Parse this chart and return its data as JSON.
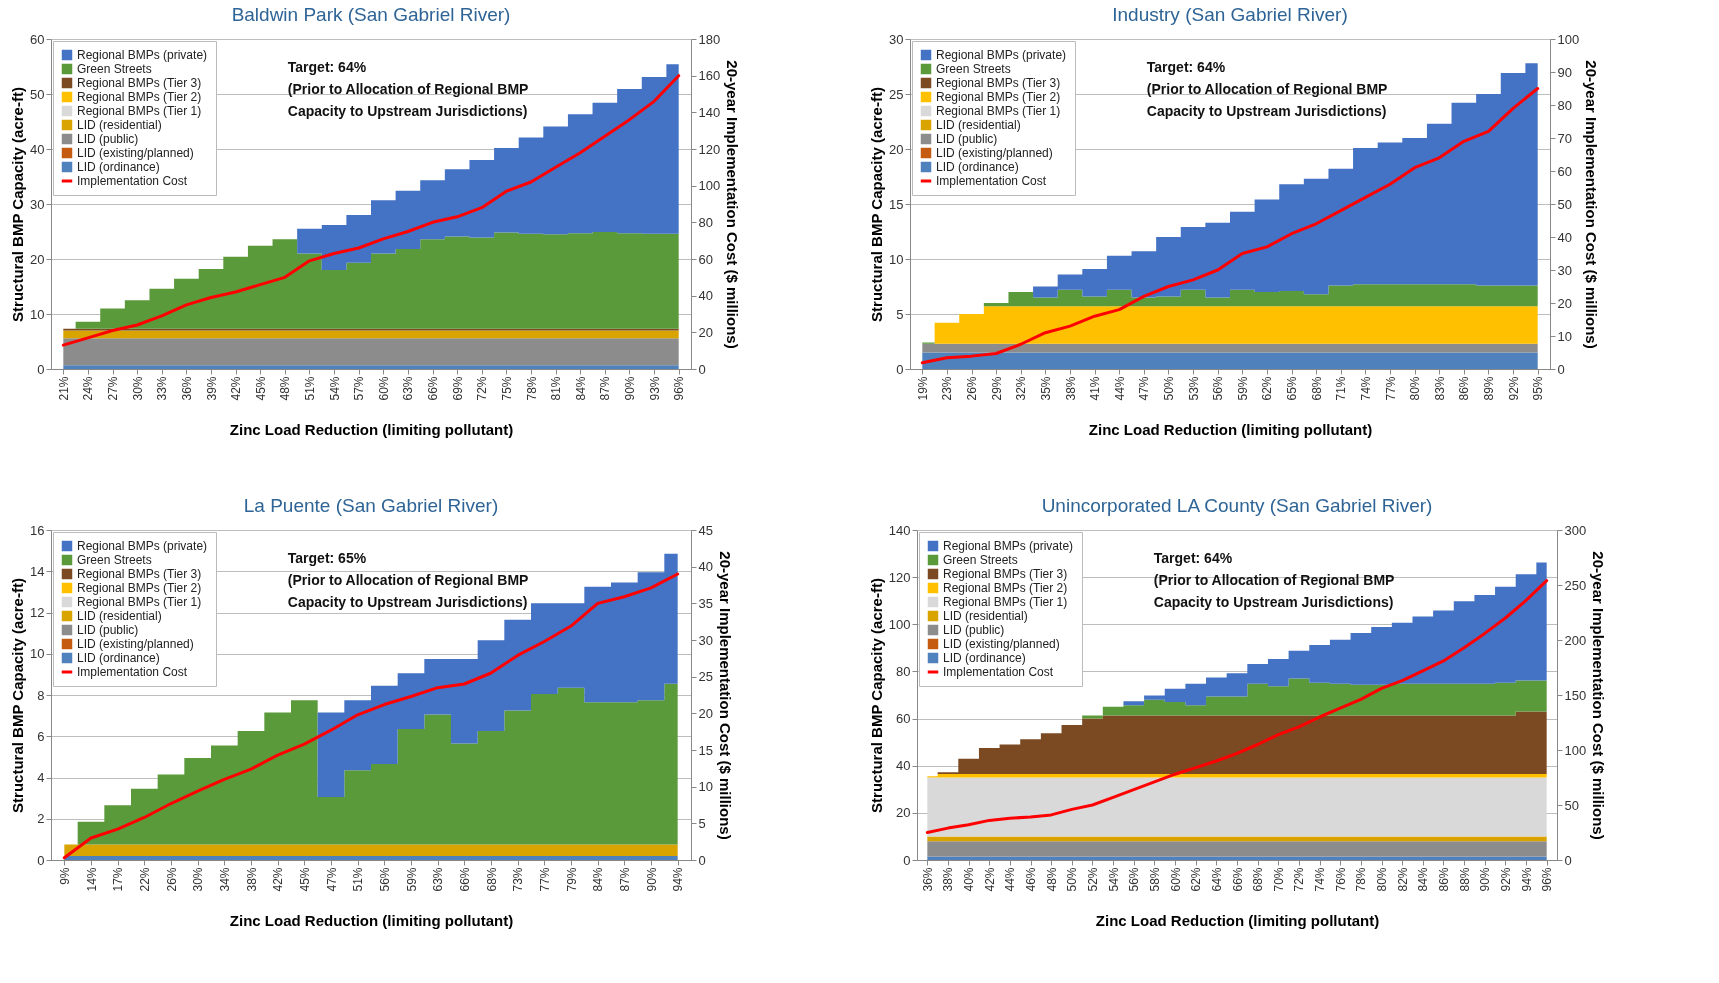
{
  "chart_data": [
    {
      "type": "area",
      "stacked": true,
      "title": "Baldwin Park (San Gabriel River)",
      "xlabel": "Zinc Load Reduction (limiting pollutant)",
      "ylabel": "Structural BMP Capacity (acre-ft)",
      "y2label": "20-year Implementation Cost ($ millions)",
      "legend": "top left",
      "grid": "y",
      "categories": [
        "21%",
        "24%",
        "27%",
        "30%",
        "33%",
        "36%",
        "39%",
        "42%",
        "45%",
        "48%",
        "51%",
        "54%",
        "57%",
        "60%",
        "63%",
        "66%",
        "69%",
        "72%",
        "75%",
        "78%",
        "81%",
        "84%",
        "87%",
        "90%",
        "93%",
        "96%"
      ],
      "ylim": [
        0,
        60
      ],
      "yticks": [
        0,
        10,
        20,
        30,
        40,
        50,
        60
      ],
      "y2lim": [
        0,
        180
      ],
      "y2ticks": [
        0,
        20,
        40,
        60,
        80,
        100,
        120,
        140,
        160,
        180
      ],
      "annotations": [
        "Target: 64%\n(Prior to Allocation of Regional BMP\nCapacity to Upstream Jurisdictions)"
      ],
      "series": [
        {
          "name": "LID (ordinance)",
          "color": "#4f81bd",
          "values": [
            0.7,
            0.7,
            0.7,
            0.7,
            0.7,
            0.7,
            0.7,
            0.7,
            0.7,
            0.7,
            0.7,
            0.7,
            0.7,
            0.7,
            0.7,
            0.7,
            0.7,
            0.7,
            0.7,
            0.7,
            0.7,
            0.7,
            0.7,
            0.7,
            0.7,
            0.7
          ]
        },
        {
          "name": "LID (existing/planned)",
          "color": "#c55a11",
          "values": [
            null,
            null,
            null,
            null,
            null,
            null,
            null,
            null,
            null,
            null,
            null,
            null,
            null,
            null,
            null,
            null,
            null,
            null,
            null,
            null,
            null,
            null,
            null,
            null,
            null,
            null
          ]
        },
        {
          "name": "LID (public)",
          "color": "#8c8c8c",
          "values": [
            4.9,
            4.9,
            4.9,
            4.9,
            4.9,
            4.9,
            4.9,
            4.9,
            4.9,
            4.9,
            4.9,
            4.9,
            4.9,
            4.9,
            4.9,
            4.9,
            4.9,
            4.9,
            4.9,
            4.9,
            4.9,
            4.9,
            4.9,
            4.9,
            4.9,
            4.9
          ]
        },
        {
          "name": "LID (residential)",
          "color": "#d9a300",
          "values": [
            1.4,
            1.4,
            1.4,
            1.4,
            1.4,
            1.4,
            1.4,
            1.4,
            1.4,
            1.4,
            1.4,
            1.4,
            1.4,
            1.4,
            1.4,
            1.4,
            1.4,
            1.4,
            1.4,
            1.4,
            1.4,
            1.4,
            1.4,
            1.4,
            1.4,
            1.4
          ]
        },
        {
          "name": "Regional BMPs (Tier 1)",
          "color": "#d9d9d9",
          "values": [
            null,
            null,
            null,
            null,
            null,
            null,
            null,
            null,
            null,
            null,
            null,
            null,
            null,
            null,
            null,
            null,
            null,
            null,
            null,
            null,
            null,
            null,
            null,
            null,
            null,
            null
          ]
        },
        {
          "name": "Regional BMPs (Tier 2)",
          "color": "#ffc000",
          "values": [
            null,
            null,
            null,
            null,
            null,
            null,
            null,
            null,
            null,
            null,
            null,
            null,
            null,
            null,
            null,
            null,
            null,
            null,
            null,
            null,
            null,
            null,
            null,
            null,
            null,
            null
          ]
        },
        {
          "name": "Regional BMPs (Tier 3)",
          "color": "#7b4a22",
          "values": [
            0.3,
            0.3,
            0.3,
            0.3,
            0.3,
            0.3,
            0.3,
            0.3,
            0.3,
            0.3,
            0.3,
            0.3,
            0.3,
            0.3,
            0.3,
            0.3,
            0.3,
            0.3,
            0.3,
            0.3,
            0.3,
            0.3,
            0.3,
            0.3,
            0.3,
            0.3
          ]
        },
        {
          "name": "Green Streets",
          "color": "#5b9a3b",
          "values": [
            0,
            1.3,
            3.7,
            5.2,
            7.3,
            9.1,
            10.9,
            13.1,
            15.1,
            16.3,
            13.7,
            10.7,
            12.0,
            13.7,
            14.5,
            16.3,
            16.8,
            16.6,
            17.5,
            17.3,
            17.2,
            17.4,
            17.6,
            17.4,
            17.3,
            17.3
          ]
        },
        {
          "name": "Regional BMPs (private)",
          "color": "#4472c4",
          "values": [
            0,
            0,
            0,
            0,
            0,
            0,
            0,
            0,
            0,
            0,
            4.5,
            8.2,
            8.7,
            9.7,
            10.6,
            10.7,
            12.2,
            14.1,
            15.4,
            17.5,
            19.6,
            21.6,
            23.5,
            26.2,
            28.5,
            30.8
          ]
        },
        {
          "name": "Implementation Cost",
          "type": "line",
          "axis": "y2",
          "color": "#ff0000",
          "values": [
            13,
            17,
            21,
            24,
            29,
            35,
            39,
            42,
            46,
            50,
            59,
            63,
            66,
            71,
            75,
            80,
            83,
            88,
            97,
            102,
            110,
            118,
            127,
            136,
            146,
            160
          ]
        }
      ]
    },
    {
      "type": "area",
      "stacked": true,
      "title": "Industry (San Gabriel River)",
      "xlabel": "Zinc Load Reduction (limiting pollutant)",
      "ylabel": "Structural BMP Capacity (acre-ft)",
      "y2label": "20-year Implementation Cost ($ millions)",
      "legend": "top left",
      "grid": "y",
      "categories": [
        "19%",
        "23%",
        "26%",
        "29%",
        "32%",
        "35%",
        "38%",
        "41%",
        "44%",
        "47%",
        "50%",
        "53%",
        "56%",
        "59%",
        "62%",
        "65%",
        "68%",
        "71%",
        "74%",
        "77%",
        "80%",
        "83%",
        "86%",
        "89%",
        "92%",
        "95%"
      ],
      "ylim": [
        0,
        30
      ],
      "yticks": [
        0,
        5,
        10,
        15,
        20,
        25,
        30
      ],
      "y2lim": [
        0,
        100
      ],
      "y2ticks": [
        0,
        10,
        20,
        30,
        40,
        50,
        60,
        70,
        80,
        90,
        100
      ],
      "annotations": [
        "Target: 64%\n(Prior to Allocation of Regional BMP\nCapacity to Upstream Jurisdictions)"
      ],
      "series": [
        {
          "name": "LID (ordinance)",
          "color": "#4f81bd",
          "values": [
            1.5,
            1.5,
            1.5,
            1.5,
            1.5,
            1.5,
            1.5,
            1.5,
            1.5,
            1.5,
            1.5,
            1.5,
            1.5,
            1.5,
            1.5,
            1.5,
            1.5,
            1.5,
            1.5,
            1.5,
            1.5,
            1.5,
            1.5,
            1.5,
            1.5,
            1.5
          ]
        },
        {
          "name": "LID (existing/planned)",
          "color": "#c55a11",
          "values": [
            null,
            null,
            null,
            null,
            null,
            null,
            null,
            null,
            null,
            null,
            null,
            null,
            null,
            null,
            null,
            null,
            null,
            null,
            null,
            null,
            null,
            null,
            null,
            null,
            null,
            null
          ]
        },
        {
          "name": "LID (public)",
          "color": "#8c8c8c",
          "values": [
            0.8,
            0.8,
            0.8,
            0.8,
            0.8,
            0.8,
            0.8,
            0.8,
            0.8,
            0.8,
            0.8,
            0.8,
            0.8,
            0.8,
            0.8,
            0.8,
            0.8,
            0.8,
            0.8,
            0.8,
            0.8,
            0.8,
            0.8,
            0.8,
            0.8,
            0.8
          ]
        },
        {
          "name": "LID (residential)",
          "color": "#d9a300",
          "values": [
            null,
            null,
            null,
            null,
            null,
            null,
            null,
            null,
            null,
            null,
            null,
            null,
            null,
            null,
            null,
            null,
            null,
            null,
            null,
            null,
            null,
            null,
            null,
            null,
            null,
            null
          ]
        },
        {
          "name": "Regional BMPs (Tier 1)",
          "color": "#d9d9d9",
          "values": [
            null,
            null,
            null,
            null,
            null,
            null,
            null,
            null,
            null,
            null,
            null,
            null,
            null,
            null,
            null,
            null,
            null,
            null,
            null,
            null,
            null,
            null,
            null,
            null,
            null,
            null
          ]
        },
        {
          "name": "Regional BMPs (Tier 2)",
          "color": "#ffc000",
          "values": [
            0,
            1.9,
            2.7,
            3.4,
            3.4,
            3.4,
            3.4,
            3.4,
            3.4,
            3.4,
            3.4,
            3.4,
            3.4,
            3.4,
            3.4,
            3.4,
            3.4,
            3.4,
            3.4,
            3.4,
            3.4,
            3.4,
            3.4,
            3.4,
            3.4,
            3.4
          ]
        },
        {
          "name": "Regional BMPs (Tier 3)",
          "color": "#7b4a22",
          "values": [
            null,
            null,
            null,
            null,
            null,
            null,
            null,
            null,
            null,
            null,
            null,
            null,
            null,
            null,
            null,
            null,
            null,
            null,
            null,
            null,
            null,
            null,
            null,
            null,
            null,
            null
          ]
        },
        {
          "name": "Green Streets",
          "color": "#5b9a3b",
          "values": [
            0.1,
            0,
            0,
            0.3,
            1.3,
            0.8,
            1.5,
            0.9,
            1.5,
            0.8,
            0.9,
            1.5,
            0.8,
            1.5,
            1.3,
            1.4,
            1.1,
            1.9,
            2.0,
            2.0,
            2.0,
            2.0,
            2.0,
            1.9,
            1.9,
            1.9
          ]
        },
        {
          "name": "Regional BMPs (private)",
          "color": "#4472c4",
          "values": [
            0,
            0,
            0,
            0,
            0,
            1.0,
            1.4,
            2.5,
            3.1,
            4.2,
            5.4,
            5.7,
            6.8,
            7.1,
            8.4,
            9.7,
            10.5,
            10.6,
            12.4,
            12.9,
            13.3,
            14.6,
            16.5,
            17.4,
            19.3,
            20.2
          ]
        },
        {
          "name": "Implementation Cost",
          "type": "line",
          "axis": "y2",
          "color": "#ff0000",
          "values": [
            1.9,
            3.4,
            3.9,
            4.7,
            7.5,
            11,
            13,
            16,
            18,
            22,
            25,
            27,
            30,
            35,
            37,
            41,
            44,
            48,
            52,
            56,
            61,
            64,
            69,
            72,
            79,
            85
          ]
        }
      ]
    },
    {
      "type": "area",
      "stacked": true,
      "title": "La Puente (San Gabriel River)",
      "xlabel": "Zinc Load Reduction (limiting pollutant)",
      "ylabel": "Structural BMP Capacity (acre-ft)",
      "y2label": "20-year Implementation Cost ($ millions)",
      "legend": "top left",
      "grid": "y",
      "categories": [
        "9%",
        "14%",
        "17%",
        "22%",
        "26%",
        "30%",
        "34%",
        "38%",
        "42%",
        "45%",
        "47%",
        "51%",
        "56%",
        "59%",
        "63%",
        "66%",
        "68%",
        "73%",
        "77%",
        "79%",
        "84%",
        "87%",
        "90%",
        "94%"
      ],
      "ylim": [
        0,
        16
      ],
      "yticks": [
        0,
        2,
        4,
        6,
        8,
        10,
        12,
        14,
        16
      ],
      "y2lim": [
        0,
        45
      ],
      "y2ticks": [
        0,
        5,
        10,
        15,
        20,
        25,
        30,
        35,
        40,
        45
      ],
      "annotations": [
        "Target: 65%\n(Prior to Allocation of Regional BMP\nCapacity to Upstream Jurisdictions)"
      ],
      "series": [
        {
          "name": "LID (ordinance)",
          "color": "#4f81bd",
          "values": [
            0.2,
            0.2,
            0.2,
            0.2,
            0.2,
            0.2,
            0.2,
            0.2,
            0.2,
            0.2,
            0.2,
            0.2,
            0.2,
            0.2,
            0.2,
            0.2,
            0.2,
            0.2,
            0.2,
            0.2,
            0.2,
            0.2,
            0.2,
            0.2
          ]
        },
        {
          "name": "LID (existing/planned)",
          "color": "#c55a11",
          "values": [
            null,
            null,
            null,
            null,
            null,
            null,
            null,
            null,
            null,
            null,
            null,
            null,
            null,
            null,
            null,
            null,
            null,
            null,
            null,
            null,
            null,
            null,
            null,
            null
          ]
        },
        {
          "name": "LID (public)",
          "color": "#8c8c8c",
          "values": [
            null,
            null,
            null,
            null,
            null,
            null,
            null,
            null,
            null,
            null,
            null,
            null,
            null,
            null,
            null,
            null,
            null,
            null,
            null,
            null,
            null,
            null,
            null,
            null
          ]
        },
        {
          "name": "LID (residential)",
          "color": "#d9a300",
          "values": [
            0.55,
            0.55,
            0.55,
            0.55,
            0.55,
            0.55,
            0.55,
            0.55,
            0.55,
            0.55,
            0.55,
            0.55,
            0.55,
            0.55,
            0.55,
            0.55,
            0.55,
            0.55,
            0.55,
            0.55,
            0.55,
            0.55,
            0.55,
            0.55
          ]
        },
        {
          "name": "Regional BMPs (Tier 1)",
          "color": "#d9d9d9",
          "values": [
            null,
            null,
            null,
            null,
            null,
            null,
            null,
            null,
            null,
            null,
            null,
            null,
            null,
            null,
            null,
            null,
            null,
            null,
            null,
            null,
            null,
            null,
            null,
            null
          ]
        },
        {
          "name": "Regional BMPs (Tier 2)",
          "color": "#ffc000",
          "values": [
            null,
            null,
            null,
            null,
            null,
            null,
            null,
            null,
            null,
            null,
            null,
            null,
            null,
            null,
            null,
            null,
            null,
            null,
            null,
            null,
            null,
            null,
            null,
            null
          ]
        },
        {
          "name": "Regional BMPs (Tier 3)",
          "color": "#7b4a22",
          "values": [
            null,
            null,
            null,
            null,
            null,
            null,
            null,
            null,
            null,
            null,
            null,
            null,
            null,
            null,
            null,
            null,
            null,
            null,
            null,
            null,
            null,
            null,
            null,
            null
          ]
        },
        {
          "name": "Green Streets",
          "color": "#5b9a3b",
          "values": [
            0,
            1.1,
            1.9,
            2.7,
            3.4,
            4.2,
            4.8,
            5.5,
            6.4,
            7.0,
            2.3,
            3.6,
            3.9,
            5.6,
            6.3,
            4.9,
            5.5,
            6.5,
            7.3,
            7.6,
            6.9,
            6.9,
            7.0,
            7.8
          ]
        },
        {
          "name": "Regional BMPs (private)",
          "color": "#4472c4",
          "values": [
            0,
            0,
            0,
            0,
            0,
            0,
            0,
            0,
            0,
            0,
            4.1,
            3.4,
            3.8,
            2.7,
            2.7,
            4.1,
            4.4,
            4.4,
            4.4,
            4.1,
            5.6,
            5.8,
            6.2,
            6.3
          ]
        },
        {
          "name": "Implementation Cost",
          "type": "line",
          "axis": "y2",
          "color": "#ff0000",
          "values": [
            0.3,
            3,
            4.2,
            5.8,
            7.7,
            9.4,
            11,
            12.4,
            14.3,
            15.8,
            17.7,
            19.8,
            21.2,
            22.3,
            23.5,
            24,
            25.5,
            27.9,
            29.8,
            31.9,
            35,
            35.9,
            37.1,
            39
          ]
        }
      ]
    },
    {
      "type": "area",
      "stacked": true,
      "title": "Unincorporated LA County (San Gabriel River)",
      "xlabel": "Zinc Load Reduction (limiting pollutant)",
      "ylabel": "Structural BMP Capacity (acre-ft)",
      "y2label": "20-year Implementation Cost ($ millions)",
      "legend": "top left",
      "grid": "y",
      "categories": [
        "36%",
        "38%",
        "40%",
        "42%",
        "44%",
        "46%",
        "48%",
        "50%",
        "52%",
        "54%",
        "56%",
        "58%",
        "60%",
        "62%",
        "64%",
        "66%",
        "68%",
        "70%",
        "72%",
        "74%",
        "76%",
        "78%",
        "80%",
        "82%",
        "84%",
        "86%",
        "88%",
        "90%",
        "92%",
        "94%",
        "96%"
      ],
      "ylim": [
        0,
        140
      ],
      "yticks": [
        0,
        20,
        40,
        60,
        80,
        100,
        120,
        140
      ],
      "y2lim": [
        0,
        300
      ],
      "y2ticks": [
        0,
        50,
        100,
        150,
        200,
        250,
        300
      ],
      "annotations": [
        "Target: 64%\n(Prior to Allocation of Regional BMP\nCapacity to Upstream Jurisdictions)"
      ],
      "series": [
        {
          "name": "LID (ordinance)",
          "color": "#4f81bd",
          "values": [
            1.5,
            1.5,
            1.5,
            1.5,
            1.5,
            1.5,
            1.5,
            1.5,
            1.5,
            1.5,
            1.5,
            1.5,
            1.5,
            1.5,
            1.5,
            1.5,
            1.5,
            1.5,
            1.5,
            1.5,
            1.5,
            1.5,
            1.5,
            1.5,
            1.5,
            1.5,
            1.5,
            1.5,
            1.5,
            1.5,
            1.5
          ]
        },
        {
          "name": "LID (existing/planned)",
          "color": "#c55a11",
          "values": [
            null,
            null,
            null,
            null,
            null,
            null,
            null,
            null,
            null,
            null,
            null,
            null,
            null,
            null,
            null,
            null,
            null,
            null,
            null,
            null,
            null,
            null,
            null,
            null,
            null,
            null,
            null,
            null,
            null,
            null,
            null
          ]
        },
        {
          "name": "LID (public)",
          "color": "#8c8c8c",
          "values": [
            6.5,
            6.5,
            6.5,
            6.5,
            6.5,
            6.5,
            6.5,
            6.5,
            6.5,
            6.5,
            6.5,
            6.5,
            6.5,
            6.5,
            6.5,
            6.5,
            6.5,
            6.5,
            6.5,
            6.5,
            6.5,
            6.5,
            6.5,
            6.5,
            6.5,
            6.5,
            6.5,
            6.5,
            6.5,
            6.5,
            6.5
          ]
        },
        {
          "name": "LID (residential)",
          "color": "#d9a300",
          "values": [
            2,
            2,
            2,
            2,
            2,
            2,
            2,
            2,
            2,
            2,
            2,
            2,
            2,
            2,
            2,
            2,
            2,
            2,
            2,
            2,
            2,
            2,
            2,
            2,
            2,
            2,
            2,
            2,
            2,
            2,
            2
          ]
        },
        {
          "name": "Regional BMPs (Tier 1)",
          "color": "#d9d9d9",
          "values": [
            25,
            25,
            25,
            25,
            25,
            25,
            25,
            25,
            25,
            25,
            25,
            25,
            25,
            25,
            25,
            25,
            25,
            25,
            25,
            25,
            25,
            25,
            25,
            25,
            25,
            25,
            25,
            25,
            25,
            25,
            25
          ]
        },
        {
          "name": "Regional BMPs (Tier 2)",
          "color": "#ffc000",
          "values": [
            0.5,
            1.5,
            1.5,
            1.5,
            1.5,
            1.5,
            1.5,
            1.5,
            1.5,
            1.5,
            1.5,
            1.5,
            1.5,
            1.5,
            1.5,
            1.5,
            1.5,
            1.5,
            1.5,
            1.5,
            1.5,
            1.5,
            1.5,
            1.5,
            1.5,
            1.5,
            1.5,
            1.5,
            1.5,
            1.5,
            1.5
          ]
        },
        {
          "name": "Regional BMPs (Tier 3)",
          "color": "#7b4a22",
          "values": [
            0,
            0.7,
            6.5,
            11,
            12.5,
            14.7,
            17.3,
            20.8,
            23.5,
            24.8,
            24.8,
            24.8,
            24.8,
            24.8,
            24.8,
            24.8,
            24.8,
            24.8,
            24.8,
            24.8,
            24.8,
            24.8,
            24.8,
            24.8,
            24.8,
            24.8,
            24.8,
            24.8,
            24.8,
            26.5,
            26.5
          ]
        },
        {
          "name": "Green Streets",
          "color": "#5b9a3b",
          "values": [
            0,
            0,
            0,
            0,
            0,
            0,
            0,
            0,
            1.3,
            3.7,
            4.3,
            6.7,
            5.7,
            4.3,
            8.1,
            8.1,
            13.5,
            12.4,
            15.7,
            13.9,
            13.5,
            13.1,
            13.1,
            13.5,
            13.5,
            13.5,
            13.5,
            13.5,
            13.9,
            13.1,
            13.1
          ]
        },
        {
          "name": "Regional BMPs (private)",
          "color": "#4472c4",
          "values": [
            0,
            0,
            0,
            0,
            0,
            0,
            0,
            0,
            0,
            0,
            1.8,
            1.8,
            5.6,
            9.2,
            8.0,
            9.8,
            8.3,
            11.6,
            11.8,
            16.0,
            18.6,
            21.9,
            24.5,
            25.8,
            28.5,
            31.1,
            35.0,
            37.6,
            40.7,
            45.1,
            50.1
          ]
        },
        {
          "name": "Implementation Cost",
          "type": "line",
          "axis": "y2",
          "color": "#ff0000",
          "values": [
            25,
            29,
            32,
            36,
            38,
            39,
            41,
            46,
            50,
            57,
            64,
            71,
            78,
            84,
            90,
            97,
            105,
            114,
            121,
            130,
            138,
            146,
            156,
            163,
            172,
            181,
            193,
            206,
            220,
            236,
            254
          ]
        }
      ]
    }
  ]
}
